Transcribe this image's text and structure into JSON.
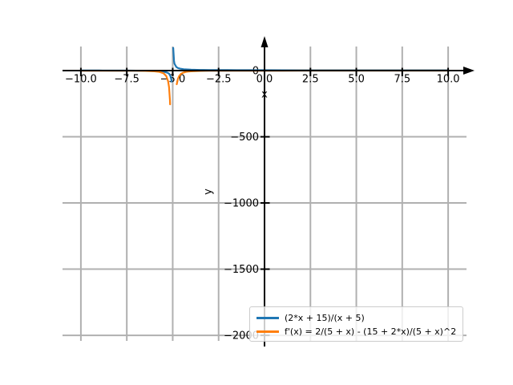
{
  "figure": {
    "background": "#ffffff"
  },
  "chart_data": {
    "type": "line",
    "title": "",
    "xlabel": "x",
    "ylabel": "y",
    "xlim": [
      -11,
      11
    ],
    "ylim": [
      -2042,
      182
    ],
    "xticks": [
      -10,
      -7.5,
      -5,
      -2.5,
      0,
      2.5,
      5,
      7.5,
      10
    ],
    "xtick_labels": [
      "−10.0",
      "−7.5",
      "−5.0",
      "−2.5",
      "0.0",
      "2.5",
      "5.0",
      "7.5",
      "10.0"
    ],
    "yticks": [
      0,
      -500,
      -1000,
      -1500,
      -2000
    ],
    "ytick_labels": [
      "0",
      "−500",
      "−1000",
      "−1500",
      "−2000"
    ],
    "grid": true,
    "grid_color": "#b0b0b0",
    "axis_color": "#000000",
    "legend_position": "lower right",
    "legend_border_color": "#cccccc",
    "legend_background": "rgba(255,255,255,0.8)",
    "vertical_asymptote_x": -5,
    "series": [
      {
        "name": "(2*x + 15)/(x + 5)",
        "color": "#1f77b4",
        "segments": [
          [
            [
              -10,
              1
            ],
            [
              -9,
              0.75
            ],
            [
              -8,
              0.33
            ],
            [
              -7.5,
              0
            ],
            [
              -7,
              -0.5
            ],
            [
              -6.5,
              -1.33
            ],
            [
              -6,
              -3
            ],
            [
              -5.5,
              -8
            ],
            [
              -5.3,
              -14.7
            ],
            [
              -5.2,
              -23
            ],
            [
              -5.1,
              -48
            ],
            [
              -5.06,
              -83
            ]
          ],
          [
            [
              -4.97,
              172
            ],
            [
              -4.93,
              73
            ],
            [
              -4.9,
              52
            ],
            [
              -4.8,
              27
            ],
            [
              -4.7,
              18.7
            ],
            [
              -4.6,
              14.5
            ],
            [
              -4.4,
              10.3
            ],
            [
              -4.2,
              8.5
            ],
            [
              -4,
              7
            ],
            [
              -3.5,
              5.33
            ],
            [
              -3,
              4.5
            ],
            [
              -2.5,
              4
            ],
            [
              -2,
              3.67
            ],
            [
              -1.5,
              3.43
            ],
            [
              -1,
              3.25
            ],
            [
              -0.5,
              3.11
            ],
            [
              0,
              3
            ],
            [
              1,
              2.83
            ],
            [
              2,
              2.71
            ],
            [
              3,
              2.63
            ],
            [
              4,
              2.56
            ],
            [
              5,
              2.5
            ],
            [
              6,
              2.45
            ],
            [
              7,
              2.42
            ],
            [
              8,
              2.38
            ],
            [
              9,
              2.36
            ],
            [
              10,
              2.33
            ]
          ]
        ]
      },
      {
        "name": "f'(x) = 2/(5 + x) - (15 + 2*x)/(5 + x)^2",
        "color": "#ff7f0e",
        "segments": [
          [
            [
              -10,
              -0.2
            ],
            [
              -9,
              -0.31
            ],
            [
              -8,
              -0.56
            ],
            [
              -7.5,
              -0.8
            ],
            [
              -7,
              -1.25
            ],
            [
              -6.5,
              -2.22
            ],
            [
              -6,
              -5
            ],
            [
              -5.75,
              -8.9
            ],
            [
              -5.5,
              -20
            ],
            [
              -5.35,
              -40.8
            ],
            [
              -5.25,
              -80
            ],
            [
              -5.2,
              -125
            ],
            [
              -5.15,
              -222
            ],
            [
              -5.14,
              -255
            ]
          ],
          [
            [
              -4.78,
              -103
            ],
            [
              -4.72,
              -64
            ],
            [
              -4.65,
              -40.8
            ],
            [
              -4.55,
              -24.7
            ],
            [
              -4.45,
              -16.5
            ],
            [
              -4.3,
              -10.2
            ],
            [
              -4.15,
              -6.9
            ],
            [
              -4,
              -5
            ],
            [
              -3.5,
              -2.22
            ],
            [
              -3,
              -1.25
            ],
            [
              -2.5,
              -0.8
            ],
            [
              -2,
              -0.56
            ],
            [
              -1,
              -0.31
            ],
            [
              0,
              -0.2
            ],
            [
              1,
              -0.14
            ],
            [
              2,
              -0.1
            ],
            [
              4,
              -0.06
            ],
            [
              6,
              -0.04
            ],
            [
              8,
              -0.03
            ],
            [
              10,
              -0.02
            ]
          ]
        ]
      }
    ]
  }
}
